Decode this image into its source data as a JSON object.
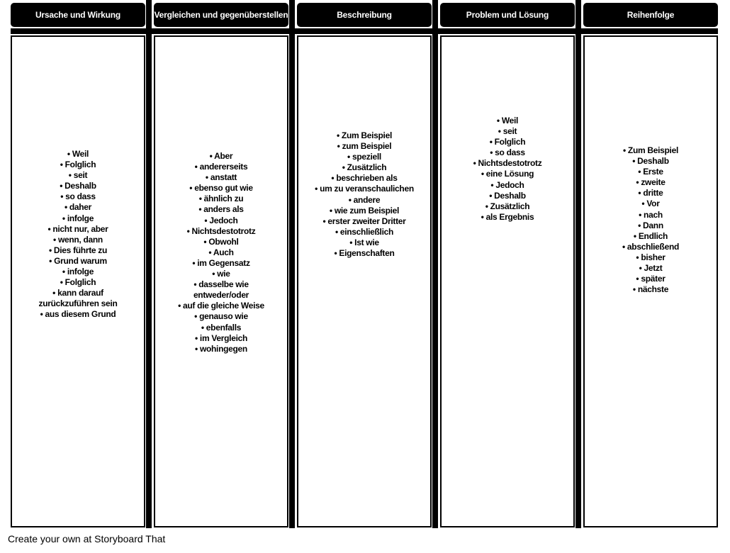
{
  "columns": [
    {
      "title": "Ursache und Wirkung",
      "items": [
        "• Weil",
        "• Folglich",
        "• seit",
        "• Deshalb",
        "• so dass",
        "• daher",
        "• infolge",
        "• nicht nur, aber",
        "• wenn, dann",
        "• Dies führte zu",
        "• Grund warum",
        "• infolge",
        "• Folglich",
        "• kann darauf",
        "zurückzuführen sein",
        "• aus diesem Grund"
      ]
    },
    {
      "title": "Vergleichen und gegenüberstellen",
      "items": [
        "• Aber",
        "• andererseits",
        "• anstatt",
        "• ebenso gut wie",
        "• ähnlich zu",
        "• anders als",
        "• Jedoch",
        "• Nichtsdestotrotz",
        "• Obwohl",
        "• Auch",
        "• im Gegensatz",
        "• wie",
        "• dasselbe wie",
        "entweder/oder",
        "• auf die gleiche Weise",
        "• genauso wie",
        "• ebenfalls",
        "• im Vergleich",
        "• wohingegen"
      ]
    },
    {
      "title": "Beschreibung",
      "items": [
        "• Zum Beispiel",
        "• zum Beispiel",
        "• speziell",
        "• Zusätzlich",
        "• beschrieben als",
        "• um zu veranschaulichen",
        "• andere",
        "• wie zum Beispiel",
        "• erster zweiter Dritter",
        "• einschließlich",
        "• Ist wie",
        "• Eigenschaften"
      ]
    },
    {
      "title": "Problem und Lösung",
      "items": [
        "• Weil",
        "• seit",
        "• Folglich",
        "• so dass",
        "• Nichtsdestotrotz",
        "• eine Lösung",
        "• Jedoch",
        "• Deshalb",
        "• Zusätzlich",
        "• als Ergebnis"
      ]
    },
    {
      "title": "Reihenfolge",
      "items": [
        "• Zum Beispiel",
        "• Deshalb",
        "• Erste",
        "• zweite",
        "• dritte",
        "• Vor",
        "• nach",
        "• Dann",
        "• Endlich",
        "• abschließend",
        "• bisher",
        "• Jetzt",
        "• später",
        "• nächste"
      ]
    }
  ],
  "footer": "Create your own at Storyboard That"
}
